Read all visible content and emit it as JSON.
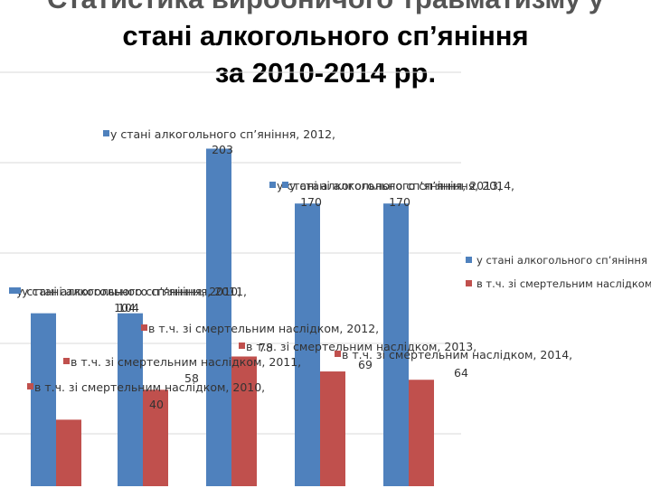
{
  "title": {
    "line1": "Статистика виробничого травматизму у",
    "line2": "стані алкогольного сп’яніння",
    "line3": "за 2010-2014 рр."
  },
  "colors": {
    "series1": "#4F81BD",
    "series2": "#C0504D"
  },
  "chart_data": {
    "type": "bar",
    "categories": [
      "2010",
      "2011",
      "2012",
      "2013",
      "2014"
    ],
    "series": [
      {
        "name": "у стані алкогольного сп’яніння",
        "values": [
          104,
          104,
          203,
          170,
          170
        ]
      },
      {
        "name": "в т.ч. зі смертельним наслідком",
        "values": [
          40,
          58,
          78,
          69,
          64
        ]
      }
    ],
    "ylim": [
      0,
      230
    ],
    "grid": true,
    "legend": "right",
    "data_labels": [
      [
        "у стані алкогольного сп’яніння, 2010,",
        "у стані алкогольного сп’яніння, 2011,",
        "у стані алкогольного сп’яніння, 2012,",
        "у стані алкогольного сп’яніння, 2013,",
        "у стані алкогольного сп’яніння, 2014,"
      ],
      [
        "в т.ч. зі смертельним наслідком, 2010,",
        "в т.ч. зі смертельним наслідком, 2011,",
        "в т.ч. зі смертельним наслідком, 2012,",
        "в т.ч. зі смертельним наслідком, 2013,",
        "в т.ч. зі смертельним наслідком, 2014,"
      ]
    ]
  }
}
